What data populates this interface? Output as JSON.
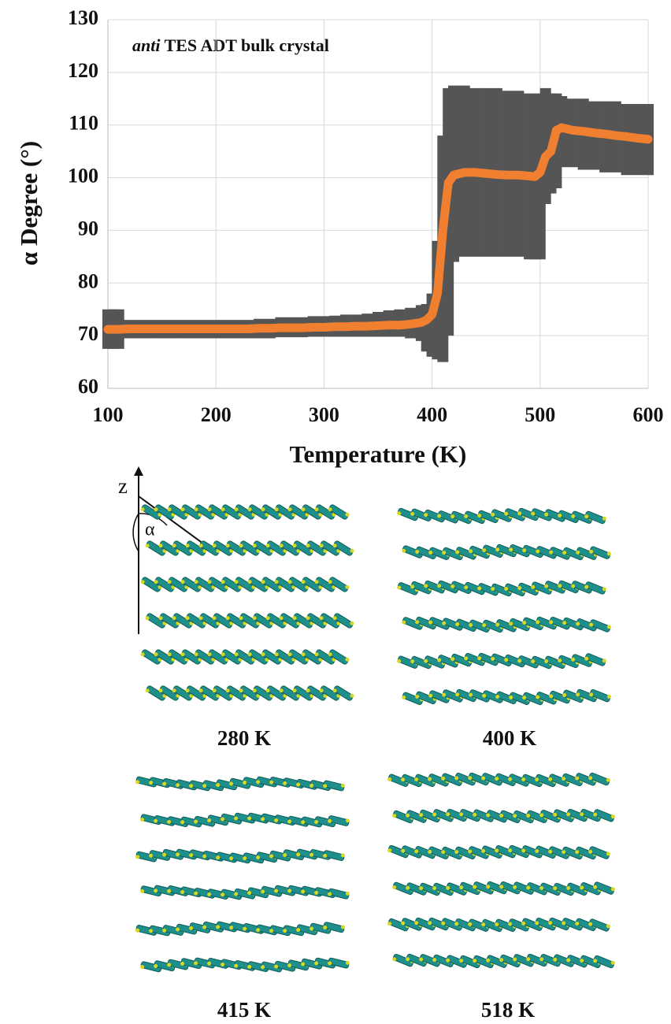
{
  "chart_data": {
    "type": "line",
    "x_label": "Temperature (K)",
    "y_label": "α Degree (°)",
    "annotation": {
      "italic": "anti",
      "text": "TES ADT bulk crystal"
    },
    "xlim": [
      100,
      600
    ],
    "xticks": [
      100,
      200,
      300,
      400,
      500,
      600
    ],
    "ylim": [
      60,
      130
    ],
    "yticks": [
      60,
      70,
      80,
      90,
      100,
      110,
      120,
      130
    ],
    "grid": true,
    "x": [
      100,
      105,
      110,
      120,
      130,
      140,
      150,
      160,
      170,
      180,
      190,
      200,
      210,
      220,
      230,
      240,
      250,
      260,
      270,
      280,
      290,
      300,
      310,
      320,
      330,
      340,
      350,
      360,
      370,
      380,
      390,
      395,
      400,
      405,
      410,
      415,
      420,
      430,
      440,
      450,
      460,
      470,
      480,
      490,
      495,
      500,
      505,
      510,
      515,
      520,
      530,
      540,
      550,
      560,
      570,
      580,
      590,
      600
    ],
    "series": [
      {
        "color": "#f08030",
        "values": [
          71.2,
          71.2,
          71.2,
          71.3,
          71.3,
          71.3,
          71.3,
          71.3,
          71.3,
          71.3,
          71.3,
          71.3,
          71.3,
          71.3,
          71.3,
          71.4,
          71.4,
          71.5,
          71.5,
          71.5,
          71.6,
          71.6,
          71.7,
          71.7,
          71.8,
          71.8,
          71.9,
          72,
          72,
          72.2,
          72.5,
          73,
          74,
          78,
          90,
          99,
          100.5,
          101,
          101,
          100.8,
          100.6,
          100.5,
          100.5,
          100.3,
          100.2,
          101,
          104,
          105,
          109,
          109.5,
          109,
          108.8,
          108.5,
          108.3,
          108,
          107.8,
          107.5,
          107.3
        ]
      }
    ],
    "band": {
      "color": "#555555",
      "lower": [
        67.5,
        67.5,
        67.5,
        69.5,
        69.5,
        69.5,
        69.5,
        69.5,
        69.5,
        69.5,
        69.5,
        69.5,
        69.5,
        69.5,
        69.5,
        69.5,
        69.5,
        69.7,
        69.7,
        69.7,
        69.8,
        69.8,
        69.8,
        69.8,
        69.8,
        69.8,
        69.8,
        69.8,
        69.8,
        69.5,
        69,
        67,
        66,
        65.5,
        65,
        70,
        84,
        85,
        85,
        85,
        85,
        85,
        85,
        84.5,
        84.5,
        84.5,
        95,
        97,
        98,
        102,
        102,
        101.5,
        101.5,
        101,
        101,
        100.5,
        100.5,
        100.5
      ],
      "upper": [
        75,
        75,
        75,
        73,
        73,
        73,
        73,
        73,
        73,
        73,
        73,
        73,
        73,
        73,
        73,
        73.2,
        73.2,
        73.5,
        73.5,
        73.5,
        73.7,
        73.7,
        73.8,
        74,
        74,
        74.2,
        74.5,
        74.8,
        75,
        75.3,
        75.8,
        76,
        78,
        88,
        108,
        117,
        117.5,
        117.5,
        117,
        117,
        117,
        116.5,
        116.5,
        116,
        115.5,
        116,
        117,
        116,
        116,
        115.5,
        115,
        115,
        114.5,
        114.5,
        114.5,
        114,
        114,
        114
      ]
    }
  },
  "figure": {
    "axis_label": "z",
    "angle_label": "α",
    "panels": [
      {
        "label": "280 K"
      },
      {
        "label": "400 K"
      },
      {
        "label": "415 K"
      },
      {
        "label": "518 K"
      }
    ]
  }
}
